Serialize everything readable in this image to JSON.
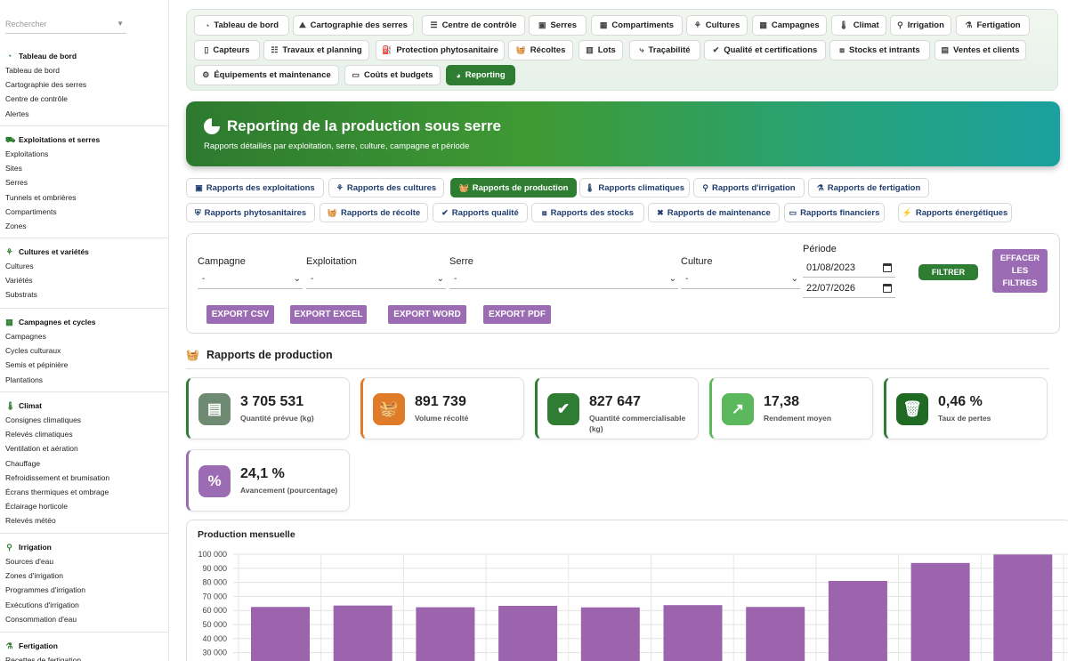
{
  "sidebar": {
    "search_placeholder": "Rechercher",
    "sections": [
      {
        "title": "Tableau de bord",
        "icon": "gauge-icon",
        "items": [
          "Tableau de bord",
          "Cartographie des serres",
          "Centre de contrôle",
          "Alertes"
        ]
      },
      {
        "title": "Exploitations et serres",
        "icon": "tractor-icon",
        "items": [
          "Exploitations",
          "Sites",
          "Serres",
          "Tunnels et ombrières",
          "Compartiments",
          "Zones"
        ]
      },
      {
        "title": "Cultures et variétés",
        "icon": "seedling-icon",
        "items": [
          "Cultures",
          "Variétés",
          "Substrats"
        ]
      },
      {
        "title": "Campagnes et cycles",
        "icon": "calendar-icon",
        "items": [
          "Campagnes",
          "Cycles culturaux",
          "Semis et pépinière",
          "Plantations"
        ]
      },
      {
        "title": "Climat",
        "icon": "thermometer-icon",
        "items": [
          "Consignes climatiques",
          "Relevés climatiques",
          "Ventilation et aération",
          "Chauffage",
          "Refroidissement et brumisation",
          "Écrans thermiques et ombrage",
          "Éclairage horticole",
          "Relevés météo"
        ]
      },
      {
        "title": "Irrigation",
        "icon": "faucet-icon",
        "items": [
          "Sources d'eau",
          "Zones d'irrigation",
          "Programmes d'irrigation",
          "Exécutions d'irrigation",
          "Consommation d'eau"
        ]
      },
      {
        "title": "Fertigation",
        "icon": "flask-icon",
        "items": [
          "Recettes de fertigation"
        ]
      }
    ]
  },
  "nav": {
    "items": [
      {
        "label": "Tableau de bord",
        "icon": "gauge-icon"
      },
      {
        "label": "Cartographie des serres",
        "icon": "map-icon"
      },
      {
        "label": "Centre de contrôle",
        "icon": "sliders-icon"
      },
      {
        "label": "Serres",
        "icon": "warehouse-icon"
      },
      {
        "label": "Compartiments",
        "icon": "grid-icon"
      },
      {
        "label": "Cultures",
        "icon": "seedling-icon"
      },
      {
        "label": "Campagnes",
        "icon": "calendar-icon"
      },
      {
        "label": "Climat",
        "icon": "thermometer-icon"
      },
      {
        "label": "Irrigation",
        "icon": "faucet-icon"
      },
      {
        "label": "Fertigation",
        "icon": "flask-icon"
      },
      {
        "label": "Capteurs",
        "icon": "sensor-icon"
      },
      {
        "label": "Travaux et planning",
        "icon": "list-icon"
      },
      {
        "label": "Protection phytosanitaire",
        "icon": "spray-icon"
      },
      {
        "label": "Récoltes",
        "icon": "basket-icon"
      },
      {
        "label": "Lots",
        "icon": "barcode-icon"
      },
      {
        "label": "Traçabilité",
        "icon": "route-icon"
      },
      {
        "label": "Qualité et certifications",
        "icon": "check-double-icon"
      },
      {
        "label": "Stocks et intrants",
        "icon": "boxes-icon"
      },
      {
        "label": "Ventes et clients",
        "icon": "invoice-icon"
      },
      {
        "label": "Équipements et maintenance",
        "icon": "gears-icon"
      },
      {
        "label": "Coûts et budgets",
        "icon": "money-icon"
      },
      {
        "label": "Reporting",
        "icon": "pie-chart-icon"
      }
    ],
    "active": "Reporting"
  },
  "hero": {
    "title": "Reporting de la production sous serre",
    "subtitle": "Rapports détaillés par exploitation, serre, culture, campagne et période"
  },
  "report_tabs": {
    "items": [
      {
        "label": "Rapports des exploitations",
        "icon": "warehouse-icon"
      },
      {
        "label": "Rapports des cultures",
        "icon": "seedling-icon"
      },
      {
        "label": "Rapports de production",
        "icon": "basket-icon"
      },
      {
        "label": "Rapports climatiques",
        "icon": "thermometer-icon"
      },
      {
        "label": "Rapports d'irrigation",
        "icon": "faucet-icon"
      },
      {
        "label": "Rapports de fertigation",
        "icon": "flask-icon"
      },
      {
        "label": "Rapports phytosanitaires",
        "icon": "shield-icon"
      },
      {
        "label": "Rapports de récolte",
        "icon": "basket-icon"
      },
      {
        "label": "Rapports qualité",
        "icon": "check-double-icon"
      },
      {
        "label": "Rapports des stocks",
        "icon": "boxes-icon"
      },
      {
        "label": "Rapports de maintenance",
        "icon": "tools-icon"
      },
      {
        "label": "Rapports financiers",
        "icon": "money-icon"
      },
      {
        "label": "Rapports énergétiques",
        "icon": "bolt-icon"
      }
    ],
    "active": "Rapports de production"
  },
  "filters": {
    "campagne": {
      "label": "Campagne",
      "value": "-"
    },
    "exploitation": {
      "label": "Exploitation",
      "value": "-"
    },
    "serre": {
      "label": "Serre",
      "value": "-"
    },
    "culture": {
      "label": "Culture",
      "value": "-"
    },
    "periode": {
      "label": "Période",
      "start": "01/08/2023",
      "end": "22/07/2026"
    },
    "filter_button": "FILTRER",
    "clear_button": [
      "EFFACER",
      "LES",
      "FILTRES"
    ],
    "exports": [
      "EXPORT CSV",
      "EXPORT EXCEL",
      "EXPORT WORD",
      "EXPORT PDF"
    ]
  },
  "section_title": "Rapports de production",
  "kpis": [
    {
      "value": "3 705 531",
      "label": "Quantité prévue (kg)",
      "icon": "clipboard-icon",
      "color": "#6f8a72",
      "border": "#2e7d32"
    },
    {
      "value": "891 739",
      "label": "Volume récolté",
      "icon": "basket-icon",
      "color": "#e07b2a",
      "border": "#e07b2a"
    },
    {
      "value": "827 647",
      "label": "Quantité commercialisable (kg)",
      "icon": "check-double-icon",
      "color": "#2e7d32",
      "border": "#2e7d32"
    },
    {
      "value": "17,38",
      "label": "Rendement moyen",
      "icon": "chart-line-icon",
      "color": "#5cb85c",
      "border": "#5cb85c"
    },
    {
      "value": "0,46 %",
      "label": "Taux de pertes",
      "icon": "trash-icon",
      "color": "#1f6b24",
      "border": "#2e7d32"
    },
    {
      "value": "24,1 %",
      "label": "Avancement (pourcentage)",
      "icon": "percent-icon",
      "color": "#9b6bb3",
      "border": "#9b6bb3"
    }
  ],
  "chart_data": {
    "type": "bar",
    "title": "Production mensuelle",
    "values": [
      62500,
      63500,
      62300,
      63300,
      62200,
      63800,
      62500,
      81000,
      93800,
      99800
    ],
    "ylim_visible": [
      30000,
      100000
    ],
    "yticks": [
      "100 000",
      "90 000",
      "80 000",
      "70 000",
      "60 000",
      "50 000",
      "40 000",
      "30 000"
    ],
    "bar_color": "#9b64ad",
    "grid": true
  }
}
